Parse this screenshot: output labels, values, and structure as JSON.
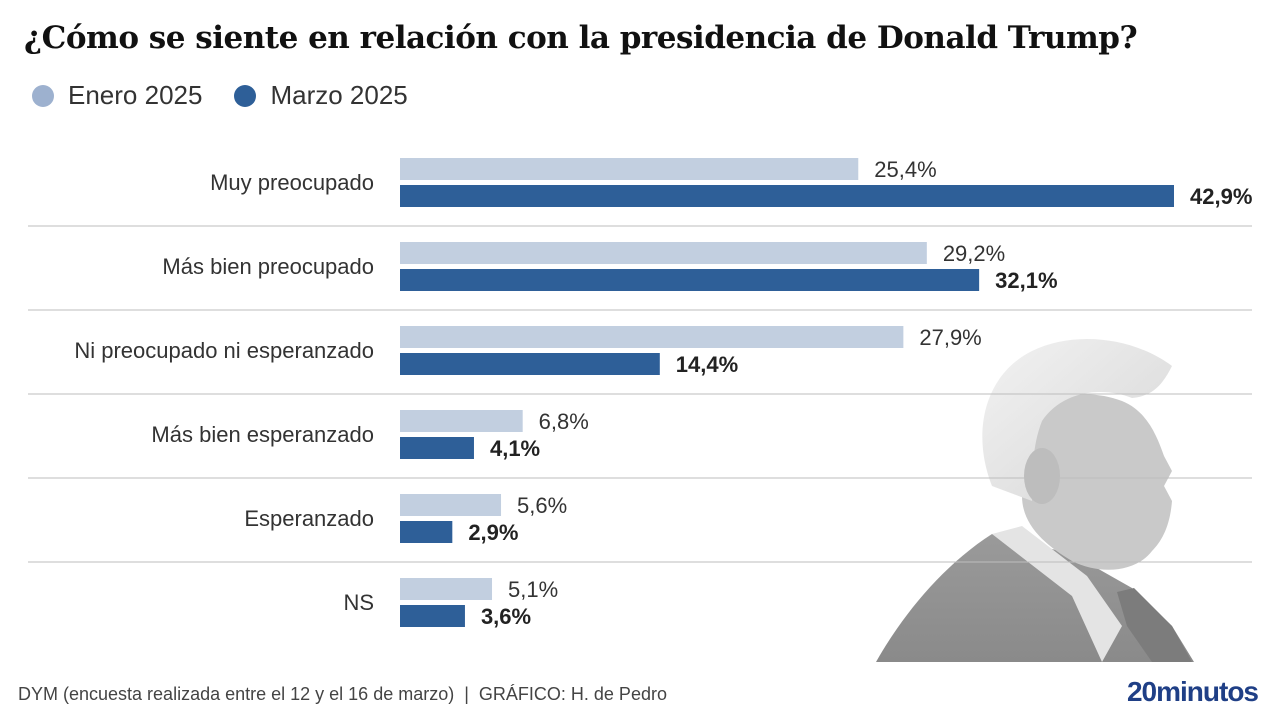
{
  "chart_data": {
    "type": "bar",
    "orientation": "horizontal",
    "title": "¿Cómo se siente en relación con la presidencia de Donald Trump?",
    "categories": [
      "Muy preocupado",
      "Más bien preocupado",
      "Ni preocupado ni esperanzado",
      "Más bien esperanzado",
      "Esperanzado",
      "NS"
    ],
    "series": [
      {
        "name": "Enero 2025",
        "color": "#c2cfe0",
        "values": [
          25.4,
          29.2,
          27.9,
          6.8,
          5.6,
          5.1
        ],
        "labels": [
          "25,4%",
          "29,2%",
          "27,9%",
          "6,8%",
          "5,6%",
          "5,1%"
        ]
      },
      {
        "name": "Marzo 2025",
        "color": "#2e5f98",
        "values": [
          42.9,
          32.1,
          14.4,
          4.1,
          2.9,
          3.6
        ],
        "labels": [
          "42,9%",
          "32,1%",
          "14,4%",
          "4,1%",
          "2,9%",
          "3,6%"
        ]
      }
    ],
    "xlabel": "",
    "ylabel": "",
    "xlim": [
      0,
      42.9
    ],
    "grid": false,
    "legend_position": "top-left"
  },
  "legend": [
    {
      "label": "Enero 2025",
      "color": "#9db1cf"
    },
    {
      "label": "Marzo 2025",
      "color": "#2e5f98"
    }
  ],
  "footer": {
    "source": "DYM (encuesta realizada entre el 12 y el 16 de marzo)",
    "separator": "|",
    "credit": "GRÁFICO: H. de Pedro"
  },
  "brand": "20minutos",
  "image": {
    "subject": "donald-trump-portrait"
  }
}
